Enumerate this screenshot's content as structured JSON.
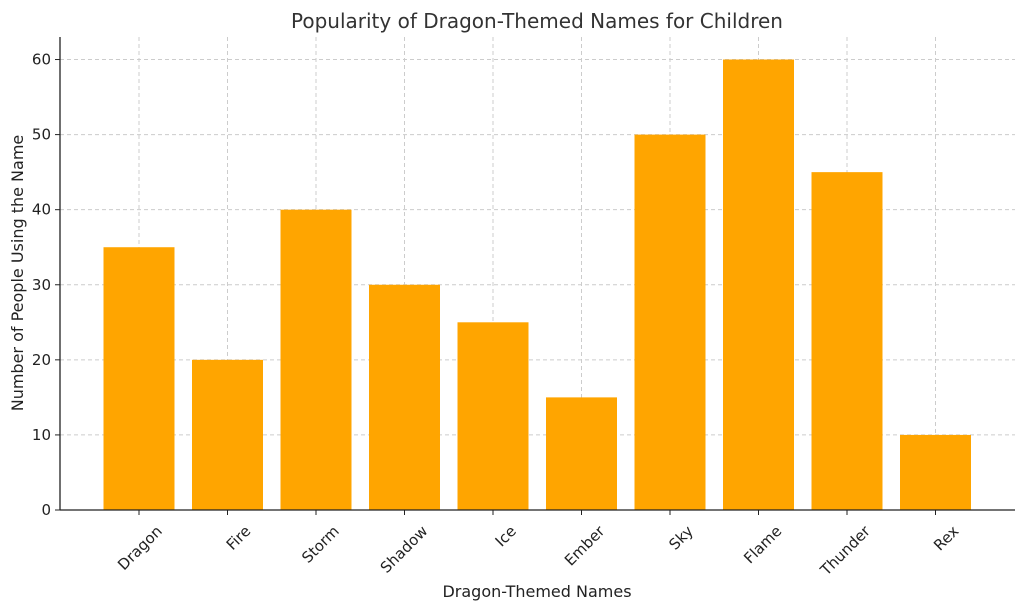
{
  "chart_data": {
    "type": "bar",
    "title": "Popularity of Dragon-Themed Names for Children",
    "xlabel": "Dragon-Themed Names",
    "ylabel": "Number of People Using the Name",
    "categories": [
      "Dragon",
      "Fire",
      "Storm",
      "Shadow",
      "Ice",
      "Ember",
      "Sky",
      "Flame",
      "Thunder",
      "Rex"
    ],
    "values": [
      35,
      20,
      40,
      30,
      25,
      15,
      50,
      60,
      45,
      10
    ],
    "ylim": [
      0,
      63
    ],
    "yticks": [
      0,
      10,
      20,
      30,
      40,
      50,
      60
    ],
    "grid": true,
    "bar_color": "#FFA500",
    "x_tick_rotation": "45deg"
  }
}
